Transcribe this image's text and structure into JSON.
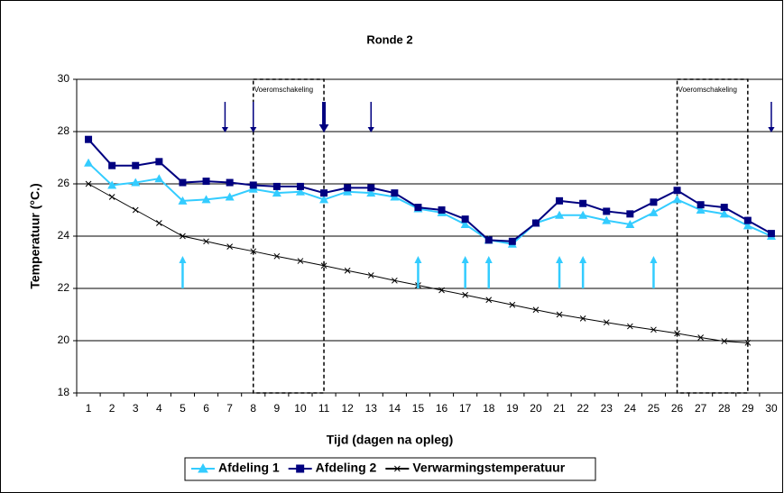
{
  "chart_data": {
    "type": "line",
    "title": "Ronde 2",
    "x_label": "Tijd (dagen na opleg)",
    "y_label": "Temperatuur (°C.)",
    "categories": [
      "1",
      "2",
      "3",
      "4",
      "5",
      "6",
      "7",
      "8",
      "9",
      "10",
      "11",
      "12",
      "13",
      "14",
      "15",
      "16",
      "17",
      "18",
      "19",
      "20",
      "21",
      "22",
      "23",
      "24",
      "25",
      "26",
      "27",
      "28",
      "29",
      "30"
    ],
    "series": [
      {
        "name": "Afdeling 1",
        "color": "#33ccff",
        "marker": "triangle",
        "values": [
          26.8,
          25.95,
          26.05,
          26.2,
          25.35,
          25.4,
          25.5,
          25.8,
          25.65,
          25.7,
          25.4,
          25.7,
          25.65,
          25.5,
          25.05,
          24.9,
          24.45,
          23.85,
          23.7,
          24.5,
          24.8,
          24.8,
          24.6,
          24.45,
          24.9,
          25.4,
          25.0,
          24.85,
          24.4,
          24.0
        ]
      },
      {
        "name": "Afdeling 2",
        "color": "#000080",
        "marker": "square",
        "values": [
          27.7,
          26.7,
          26.7,
          26.85,
          26.05,
          26.1,
          26.05,
          25.95,
          25.9,
          25.9,
          25.65,
          25.85,
          25.85,
          25.65,
          25.1,
          25.0,
          24.65,
          23.85,
          23.8,
          24.5,
          25.35,
          25.25,
          24.95,
          24.85,
          25.3,
          25.75,
          25.2,
          25.1,
          24.6,
          24.1
        ]
      },
      {
        "name": "Verwarmingstemperatuur",
        "color": "#000000",
        "marker": "x",
        "values": [
          26,
          25.5,
          25.0,
          24.5,
          24.0,
          23.8,
          23.6,
          23.42,
          23.23,
          23.05,
          22.87,
          22.68,
          22.5,
          22.3,
          22.12,
          21.93,
          21.75,
          21.56,
          21.37,
          21.18,
          21.0,
          20.85,
          20.7,
          20.55,
          20.42,
          20.28,
          20.12,
          19.98,
          19.92,
          null
        ]
      }
    ],
    "ylim": [
      18,
      30
    ],
    "yticks": [
      18,
      20,
      22,
      24,
      26,
      28,
      30
    ],
    "grid": true,
    "legend": "bottom",
    "periods": [
      {
        "start": 8,
        "end": 11,
        "label": "Voeromschakeling"
      },
      {
        "start": 26,
        "end": 29,
        "label": "Voeromschakeling"
      }
    ],
    "down_arrows": [
      {
        "day": 6.8
      },
      {
        "day": 8
      },
      {
        "day": 11,
        "bold": true
      },
      {
        "day": 13
      },
      {
        "day": 30
      }
    ],
    "up_arrows": [
      {
        "day": 5
      },
      {
        "day": 15
      },
      {
        "day": 17
      },
      {
        "day": 18
      },
      {
        "day": 21
      },
      {
        "day": 22
      },
      {
        "day": 25
      }
    ]
  }
}
